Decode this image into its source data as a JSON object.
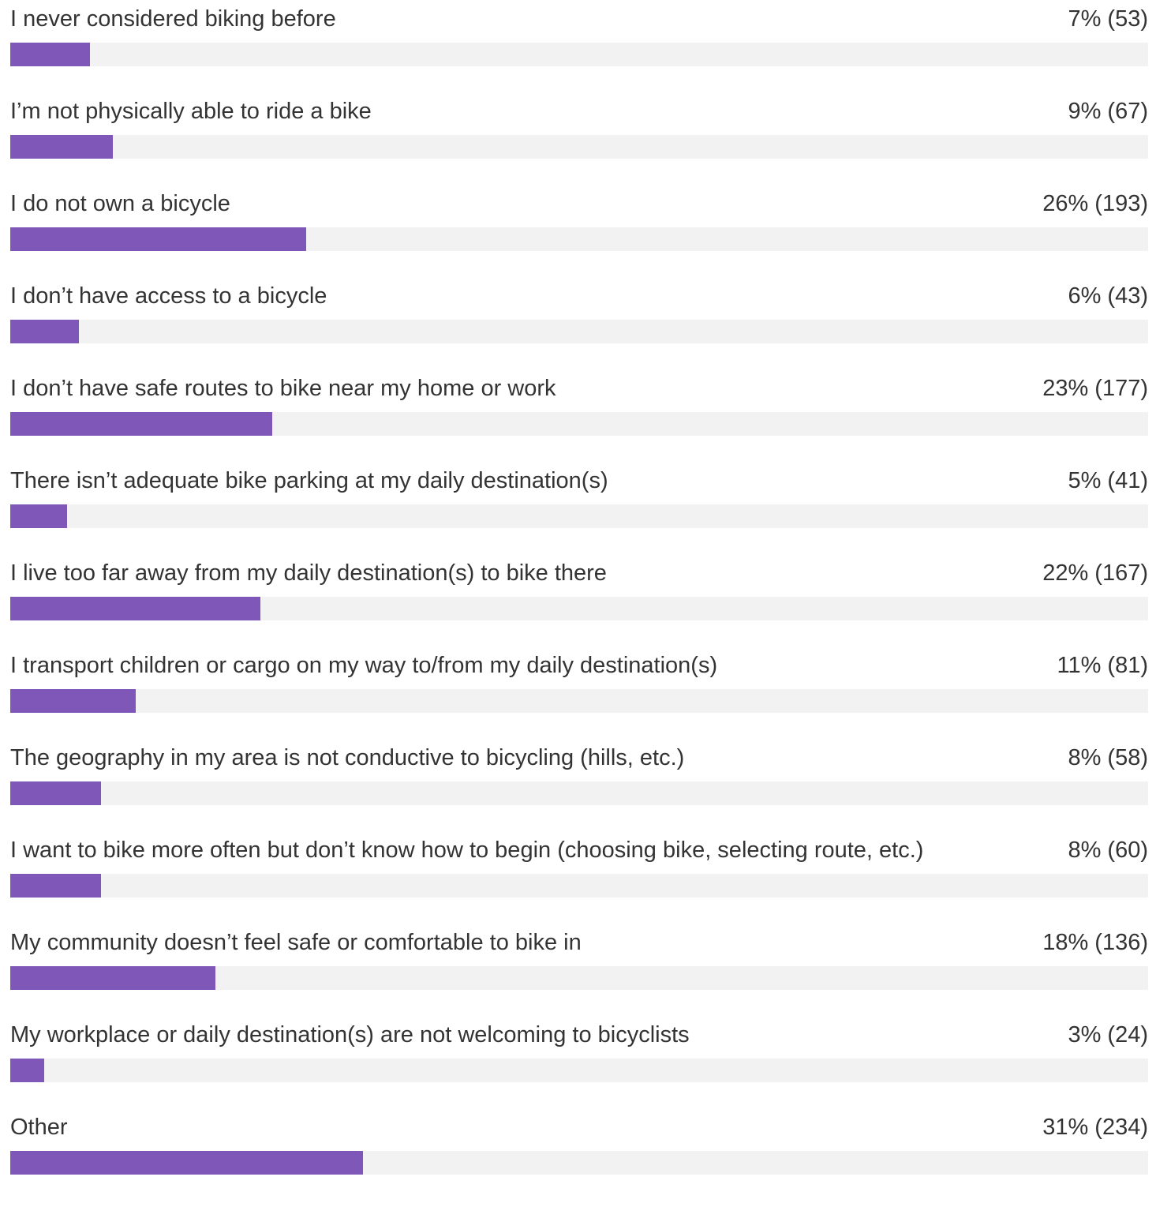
{
  "chart_data": {
    "type": "bar",
    "orientation": "horizontal",
    "color": "#7e57b9",
    "categories": [
      "I never considered biking before",
      "I’m not physically able to ride a bike",
      "I do not own a bicycle",
      "I don’t have access to a bicycle",
      "I don’t have safe routes to bike near my home or work",
      "There isn’t adequate bike parking at my daily destination(s)",
      "I live too far away from my daily destination(s) to bike there",
      "I transport children or cargo on my way to/from my daily destination(s)",
      "The geography in my area is not conductive to bicycling (hills, etc.)",
      "I want to bike more often but don’t know how to begin (choosing bike, selecting route, etc.)",
      "My community doesn’t feel safe or comfortable to bike in",
      "My workplace or daily destination(s) are not welcoming to bicyclists",
      "Other"
    ],
    "values": [
      7,
      9,
      26,
      6,
      23,
      5,
      22,
      11,
      8,
      8,
      18,
      3,
      31
    ],
    "value_labels": [
      "7% (53)",
      "9% (67)",
      "26% (193)",
      "6% (43)",
      "23% (177)",
      "5% (41)",
      "22% (167)",
      "11% (81)",
      "8% (58)",
      "8% (60)",
      "18% (136)",
      "3% (24)",
      "31% (234)"
    ],
    "xlim": [
      0,
      100
    ]
  }
}
